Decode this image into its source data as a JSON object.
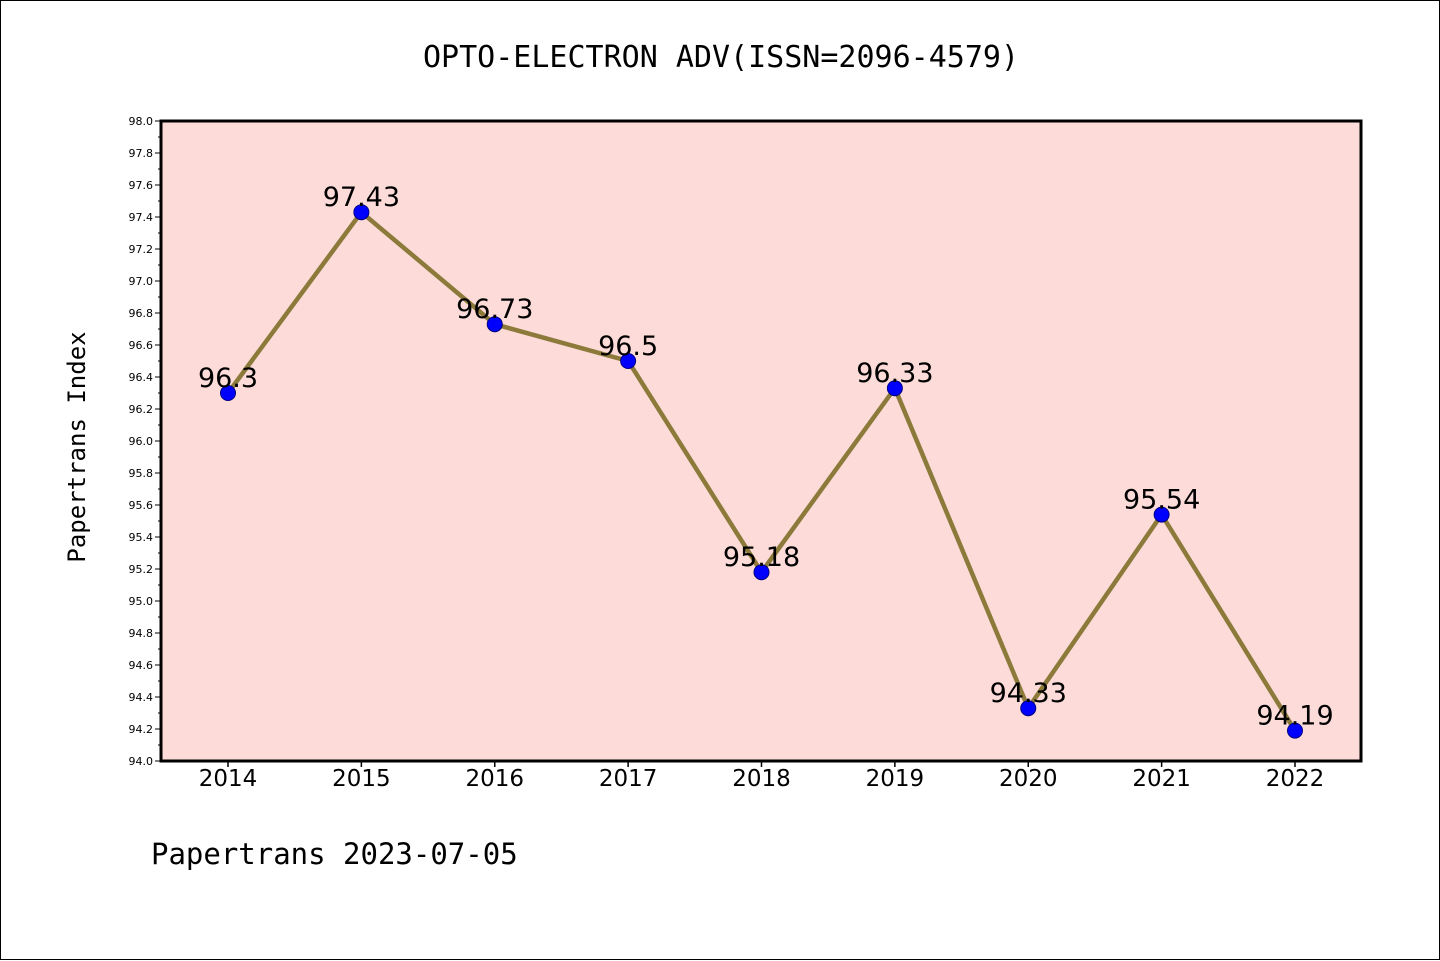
{
  "title": "OPTO-ELECTRON ADV(ISSN=2096-4579)",
  "footer": "Papertrans 2023-07-05",
  "colors": {
    "plot_background": "#fddbd9",
    "line": "#8c7a3a",
    "marker_fill": "#0000ff",
    "marker_edge": "#000080",
    "axis": "#000000"
  },
  "chart_data": {
    "type": "line",
    "title": "OPTO-ELECTRON ADV(ISSN=2096-4579)",
    "xlabel": "",
    "ylabel": "Papertrans Index",
    "categories": [
      "2014",
      "2015",
      "2016",
      "2017",
      "2018",
      "2019",
      "2020",
      "2021",
      "2022"
    ],
    "values": [
      96.3,
      97.43,
      96.73,
      96.5,
      95.18,
      96.33,
      94.33,
      95.54,
      94.19
    ],
    "data_labels": [
      "96.3",
      "97.43",
      "96.73",
      "96.5",
      "95.18",
      "96.33",
      "94.33",
      "95.54",
      "94.19"
    ],
    "ylim": [
      94.0,
      98.0
    ],
    "yticks": [
      "94.0",
      "94.2",
      "94.4",
      "94.6",
      "94.8",
      "95.0",
      "95.2",
      "95.4",
      "95.6",
      "95.8",
      "96.0",
      "96.2",
      "96.4",
      "96.6",
      "96.8",
      "97.0",
      "97.2",
      "97.4",
      "97.6",
      "97.8",
      "98.0"
    ],
    "grid": false,
    "legend": "none"
  }
}
